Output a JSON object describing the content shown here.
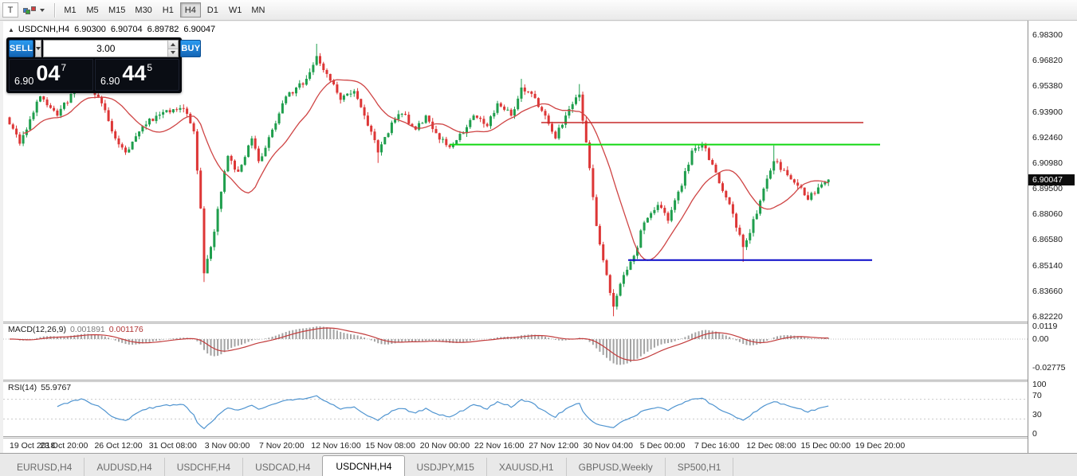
{
  "toolbar": {
    "icons": [
      {
        "name": "text-tool-icon",
        "glyph": "T"
      },
      {
        "name": "palette-icon"
      }
    ],
    "timeframes": [
      "M1",
      "M5",
      "M15",
      "M30",
      "H1",
      "H4",
      "D1",
      "W1",
      "MN"
    ],
    "active_timeframe": "H4"
  },
  "chart": {
    "header": {
      "marker": "▲",
      "symbol": "USDCNH,H4",
      "open": "6.90300",
      "high": "6.90704",
      "low": "6.89782",
      "close": "6.90047"
    },
    "trade_panel": {
      "sell_label": "SELL",
      "buy_label": "BUY",
      "volume": "3.00",
      "sell_price": {
        "base": "6.90",
        "big": "04",
        "sup": "7"
      },
      "buy_price": {
        "base": "6.90",
        "big": "44",
        "sup": "5"
      }
    },
    "price_axis_labels": [
      "6.98300",
      "6.96820",
      "6.95380",
      "6.93900",
      "6.92460",
      "6.90980",
      "6.89500",
      "6.88060",
      "6.86580",
      "6.85140",
      "6.83660",
      "6.82220"
    ],
    "current_price": "6.90047"
  },
  "macd_panel": {
    "name": "MACD(12,26,9)",
    "value1": "0.001891",
    "value2": "0.001176",
    "axis_labels": [
      "0.0119",
      "0.00",
      "-0.02775"
    ]
  },
  "rsi_panel": {
    "name": "RSI(14)",
    "value": "55.9767",
    "axis_labels": [
      "100",
      "70",
      "30",
      "0"
    ]
  },
  "time_axis_labels": [
    "19 Oct 2018",
    "23 Oct 20:00",
    "26 Oct 12:00",
    "31 Oct 08:00",
    "3 Nov 00:00",
    "7 Nov 20:00",
    "12 Nov 16:00",
    "15 Nov 08:00",
    "20 Nov 00:00",
    "22 Nov 16:00",
    "27 Nov 12:00",
    "30 Nov 04:00",
    "5 Dec 00:00",
    "7 Dec 16:00",
    "12 Dec 08:00",
    "15 Dec 00:00",
    "19 Dec 20:00"
  ],
  "bottom_tabs": {
    "items": [
      "EURUSD,H4",
      "AUDUSD,H4",
      "USDCHF,H4",
      "USDCAD,H4",
      "USDCNH,H4",
      "USDJPY,M15",
      "XAUUSD,H1",
      "GBPUSD,Weekly",
      "SP500,H1"
    ],
    "active_index": 4
  },
  "colors": {
    "bull": "#1f9e4d",
    "bear": "#dd3636",
    "ma": "#cf4545",
    "macd_hist": "#a3a3a3",
    "macd_signal": "#c23b3b",
    "rsi_line": "#4f94d0",
    "hline_red": "#c62828",
    "hline_green": "#12d812",
    "hline_blue": "#0909c8"
  },
  "chart_data": {
    "type": "candlestick",
    "symbol": "USDCNH",
    "timeframe": "H4",
    "bars": 241,
    "price_max_label": 6.983,
    "price_min_label": 6.8222,
    "last_close": 6.90047,
    "moving_average_period": 16,
    "waypoints": [
      [
        0,
        6.932
      ],
      [
        3,
        6.921
      ],
      [
        9,
        6.948
      ],
      [
        14,
        6.937
      ],
      [
        21,
        6.957
      ],
      [
        27,
        6.944
      ],
      [
        31,
        6.924
      ],
      [
        34,
        6.916
      ],
      [
        39,
        6.931
      ],
      [
        45,
        6.939
      ],
      [
        51,
        6.941
      ],
      [
        54,
        6.928
      ],
      [
        56,
        6.884
      ],
      [
        57,
        6.847
      ],
      [
        59,
        6.862
      ],
      [
        64,
        6.914
      ],
      [
        67,
        6.905
      ],
      [
        71,
        6.924
      ],
      [
        73,
        6.911
      ],
      [
        77,
        6.929
      ],
      [
        80,
        6.944
      ],
      [
        84,
        6.953
      ],
      [
        87,
        6.958
      ],
      [
        90,
        6.971
      ],
      [
        92,
        6.963
      ],
      [
        94,
        6.957
      ],
      [
        97,
        6.946
      ],
      [
        101,
        6.951
      ],
      [
        104,
        6.937
      ],
      [
        108,
        6.916
      ],
      [
        112,
        6.933
      ],
      [
        115,
        6.938
      ],
      [
        119,
        6.929
      ],
      [
        122,
        6.937
      ],
      [
        125,
        6.927
      ],
      [
        129,
        6.919
      ],
      [
        133,
        6.927
      ],
      [
        136,
        6.937
      ],
      [
        140,
        6.931
      ],
      [
        143,
        6.944
      ],
      [
        147,
        6.937
      ],
      [
        150,
        6.953
      ],
      [
        154,
        6.947
      ],
      [
        157,
        6.937
      ],
      [
        160,
        6.924
      ],
      [
        163,
        6.937
      ],
      [
        167,
        6.949
      ],
      [
        170,
        6.907
      ],
      [
        172,
        6.874
      ],
      [
        175,
        6.846
      ],
      [
        177,
        6.828
      ],
      [
        180,
        6.846
      ],
      [
        183,
        6.857
      ],
      [
        186,
        6.876
      ],
      [
        190,
        6.886
      ],
      [
        193,
        6.877
      ],
      [
        197,
        6.897
      ],
      [
        200,
        6.917
      ],
      [
        203,
        6.921
      ],
      [
        206,
        6.909
      ],
      [
        209,
        6.894
      ],
      [
        212,
        6.881
      ],
      [
        215,
        6.862
      ],
      [
        219,
        6.881
      ],
      [
        222,
        6.901
      ],
      [
        224,
        6.911
      ],
      [
        228,
        6.903
      ],
      [
        231,
        6.897
      ],
      [
        234,
        6.889
      ],
      [
        237,
        6.896
      ],
      [
        240,
        6.90047
      ]
    ],
    "spikes": [
      {
        "bar": 57,
        "low": 6.842
      },
      {
        "bar": 90,
        "high": 6.978
      },
      {
        "bar": 108,
        "low": 6.91
      },
      {
        "bar": 150,
        "high": 6.958
      },
      {
        "bar": 167,
        "high": 6.955
      },
      {
        "bar": 177,
        "low": 6.8225
      },
      {
        "bar": 215,
        "low": 6.8535
      },
      {
        "bar": 224,
        "high": 6.92
      }
    ],
    "hlines": [
      {
        "price": 6.933,
        "color_key": "hline_red",
        "x1_frac": 0.525,
        "x2_frac": 0.84,
        "width": 1.4
      },
      {
        "price": 6.9205,
        "color_key": "hline_green",
        "x1_frac": 0.436,
        "x2_frac": 0.856,
        "width": 2
      },
      {
        "price": 6.8545,
        "color_key": "hline_blue",
        "x1_frac": 0.61,
        "x2_frac": 0.848,
        "width": 2
      }
    ],
    "macd": {
      "fast": 12,
      "slow": 26,
      "signal": 9
    },
    "rsi": {
      "period": 14,
      "levels": [
        70,
        30
      ]
    }
  }
}
